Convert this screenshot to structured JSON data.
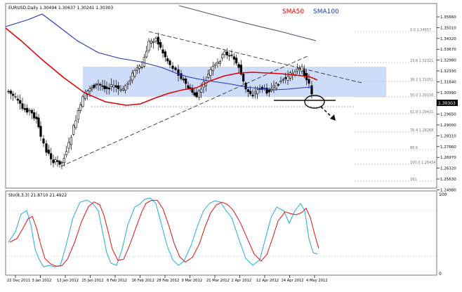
{
  "main": {
    "title": "EURUSD,Daily  1.30494 1.30637 1.30241 1.30303",
    "sma50_label": "SMA50",
    "sma100_label": "SMA100",
    "price_ticks": [
      "1.35660",
      "1.35010",
      "1.34320",
      "1.33670",
      "1.32980",
      "1.32330",
      "1.31640",
      "1.30990",
      "1.30303",
      "1.29650",
      "1.29000",
      "1.28310",
      "1.27660",
      "1.26970",
      "1.26320",
      "1.25630",
      "1.24980"
    ],
    "current_price": "1.30303",
    "fib_labels": [
      "0.0 1.34657",
      "23.6 1.32321",
      "38.2 1.31051",
      "50.0 1.30156",
      "61.8 1.29421",
      "76.4 1.28268",
      "88.6",
      "100.0 1.26434",
      "161"
    ],
    "colors": {
      "sma50": "#dd0000",
      "sma100": "#2233bb",
      "sma200": "#505070",
      "zone": "#c8d8f8",
      "stoch_k": "#22aadd",
      "stoch_d": "#dd1111"
    }
  },
  "stoch": {
    "title": "Sto(8,3,3) 21.8710 21.4922",
    "tick_100": "100",
    "tick_0": "0"
  },
  "x_ticks": [
    "22 Dec 2011",
    "3 Jan 2012",
    "13 Jan 2012",
    "25 Jan 2012",
    "6 Feb 2012",
    "16 Feb 2012",
    "28 Feb 2012",
    "9 Mar 2012",
    "21 Mar 2012",
    "2 Apr 2012",
    "12 Apr 2012",
    "24 Apr 2012",
    "4 May 2012"
  ]
}
